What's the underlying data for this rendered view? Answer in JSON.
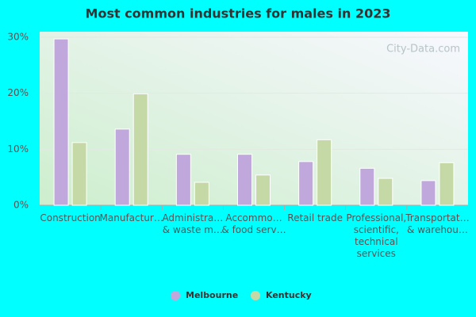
{
  "chart_data": {
    "type": "bar",
    "title": "Most common industries for males in 2023",
    "watermark": "City-Data.com",
    "categories": [
      [
        "Construction"
      ],
      [
        "Manufactur…"
      ],
      [
        "Administra…",
        "& waste m…"
      ],
      [
        "Accommo…",
        "& food serv…"
      ],
      [
        "Retail trade"
      ],
      [
        "Professional,",
        "scientific,",
        "technical",
        "services"
      ],
      [
        "Transportat…",
        "& warehou…"
      ]
    ],
    "series": [
      {
        "name": "Melbourne",
        "color": "#c0a8dc",
        "values": [
          29.7,
          13.6,
          9.1,
          9.1,
          7.8,
          6.6,
          4.4
        ]
      },
      {
        "name": "Kentucky",
        "color": "#c5d9a6",
        "values": [
          11.2,
          19.9,
          4.1,
          5.4,
          11.7,
          4.8,
          7.6
        ]
      }
    ],
    "ylim": [
      0,
      30
    ],
    "yticks": [
      {
        "value": 0,
        "label": "0%"
      },
      {
        "value": 10,
        "label": "10%"
      },
      {
        "value": 20,
        "label": "20%"
      },
      {
        "value": 30,
        "label": "30%"
      }
    ],
    "grid": true,
    "legend": "bottom"
  }
}
